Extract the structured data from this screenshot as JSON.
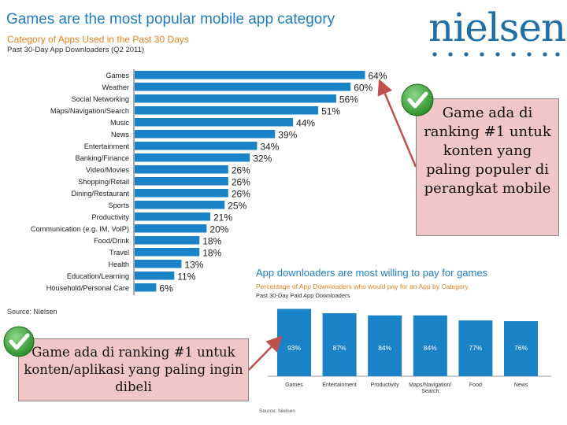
{
  "page": {
    "title": "Games are the most popular mobile app category",
    "brand": "nielsen"
  },
  "chart_data": [
    {
      "type": "bar",
      "orientation": "horizontal",
      "title": "Category of Apps Used in the Past 30 Days",
      "subtitle": "Past 30-Day App Downloaders  (Q2 2011)",
      "categories": [
        "Games",
        "Weather",
        "Social Networking",
        "Maps/Navigation/Search",
        "Music",
        "News",
        "Entertainment",
        "Banking/Finance",
        "Video/Movies",
        "Shopping/Retail",
        "Dining/Restaurant",
        "Sports",
        "Productivity",
        "Communication (e.g. IM, VoIP)",
        "Food/Drink",
        "Travel",
        "Health",
        "Education/Learning",
        "Household/Personal Care"
      ],
      "values": [
        64,
        60,
        56,
        51,
        44,
        39,
        34,
        32,
        26,
        26,
        26,
        25,
        21,
        20,
        18,
        18,
        13,
        11,
        6
      ],
      "value_labels": [
        "64%",
        "60%",
        "56%",
        "51%",
        "44%",
        "39%",
        "34%",
        "32%",
        "26%",
        "26%",
        "26%",
        "25%",
        "21%",
        "20%",
        "18%",
        "18%",
        "13%",
        "11%",
        "6%"
      ],
      "xlim": [
        0,
        100
      ],
      "source": "Source: Nielsen",
      "color": "#1a82c6"
    },
    {
      "type": "bar",
      "orientation": "vertical",
      "title": "App downloaders are most willing to pay for games",
      "subtitle": "Percentage of App Downloaders who would pay for an App by Category",
      "subsubtitle": "Past 30-Day Paid App Downloaders",
      "categories": [
        "Games",
        "Entertainment",
        "Productivity",
        "Maps/Navigation/ Search",
        "Food",
        "News"
      ],
      "values": [
        93,
        87,
        84,
        84,
        77,
        76
      ],
      "value_labels": [
        "93%",
        "87%",
        "84%",
        "84%",
        "77%",
        "76%"
      ],
      "ylim": [
        0,
        100
      ],
      "source": "Source: Nielsen",
      "color": "#1a82c6"
    }
  ],
  "notes": {
    "note1": "Game ada di ranking #1 untuk konten yang paling populer di perangkat mobile",
    "note2": "Game ada di ranking #1 untuk konten/aplikasi yang paling ingin dibeli"
  },
  "colors": {
    "title": "#1f7ec2",
    "accent": "#e8821f",
    "bar": "#1a82c6",
    "note_bg": "#f1c6c6",
    "arrow": "#c0504d",
    "check": "#3aa338"
  },
  "icons": [
    "checkmark-icon",
    "arrow-icon"
  ]
}
